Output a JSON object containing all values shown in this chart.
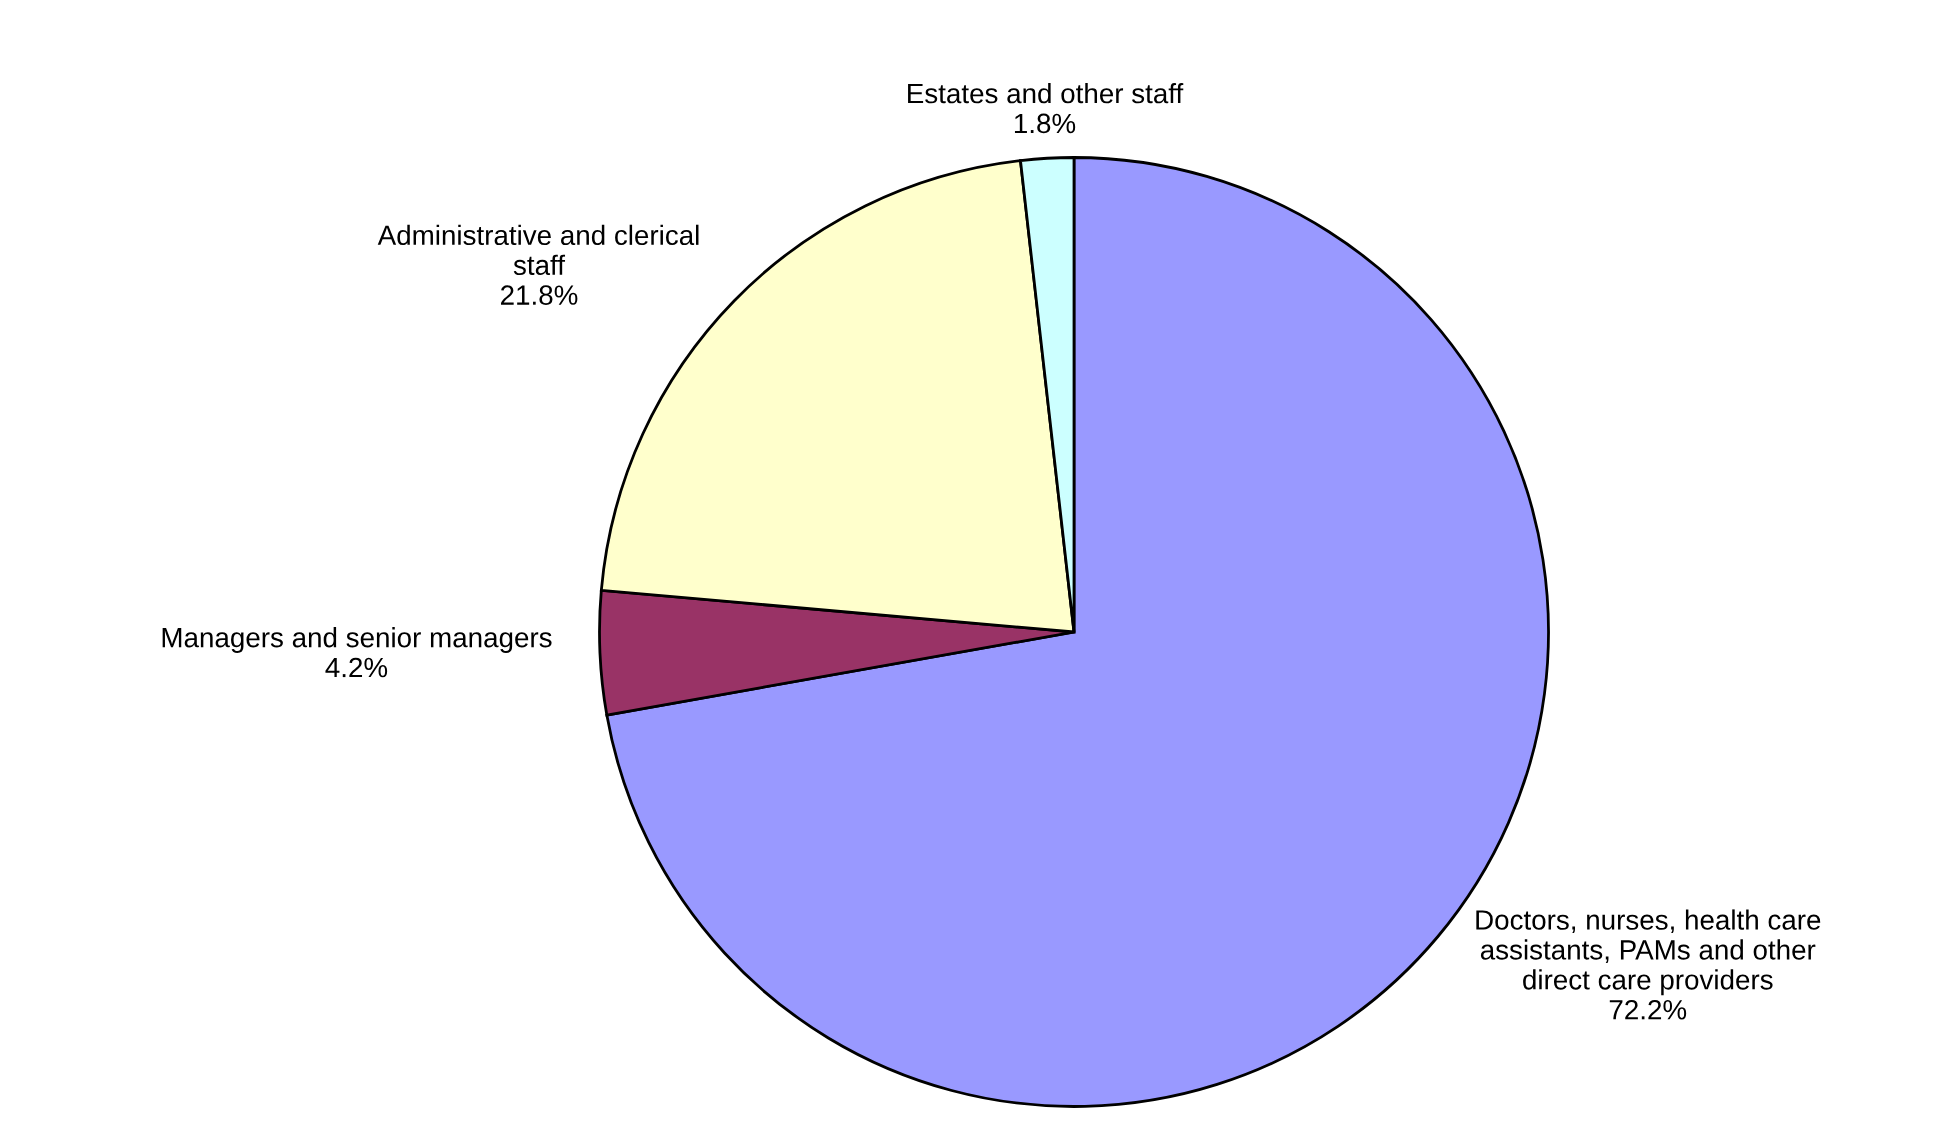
{
  "chart_data": {
    "type": "pie",
    "categories": [
      "Doctors, nurses, health care assistants, PAMs and other direct care providers",
      "Managers and senior managers",
      "Administrative and clerical staff",
      "Estates and other staff"
    ],
    "values": [
      72.2,
      4.2,
      21.8,
      1.8
    ],
    "colors": [
      "#9999ff",
      "#993366",
      "#ffffcc",
      "#ccffff"
    ],
    "value_labels": [
      "72.2%",
      "4.2%",
      "21.8%",
      "1.8%"
    ]
  }
}
